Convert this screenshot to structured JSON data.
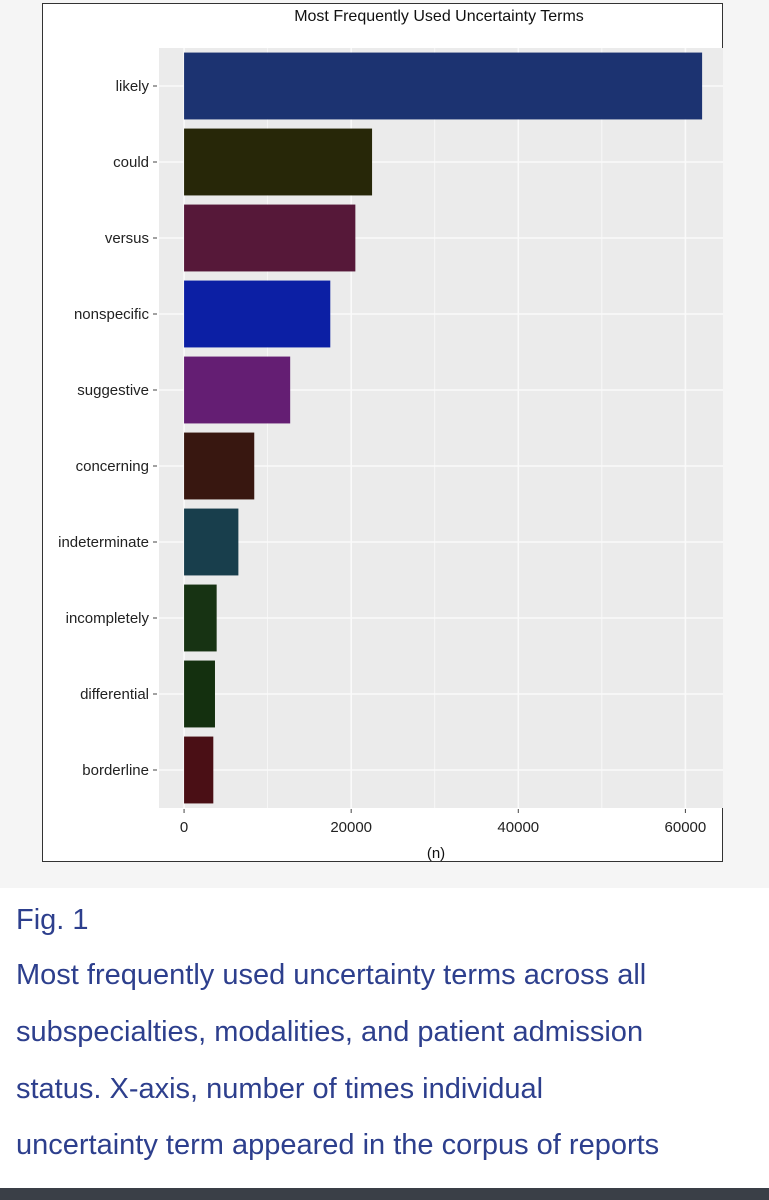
{
  "figure_label": "Fig. 1",
  "caption_lines": [
    "Most frequently used uncertainty terms across all",
    "subspecialties, modalities, and patient admission",
    "status. X-axis, number of times individual",
    "uncertainty term appeared in the corpus of reports"
  ],
  "chart_data": {
    "type": "bar",
    "orientation": "horizontal",
    "title": "Most Frequently Used Uncertainty Terms",
    "xlabel": "(n)",
    "ylabel": "",
    "categories": [
      "likely",
      "could",
      "versus",
      "nonspecific",
      "suggestive",
      "concerning",
      "indeterminate",
      "incompletely",
      "differential",
      "borderline"
    ],
    "values": [
      62000,
      22500,
      20500,
      17500,
      12700,
      8400,
      6500,
      3900,
      3700,
      3500
    ],
    "bar_colors": [
      "#1c3371",
      "#272708",
      "#561839",
      "#0c1fa4",
      "#641e73",
      "#381710",
      "#183e4c",
      "#173313",
      "#14300f",
      "#4a0f15"
    ],
    "xlim": [
      -3000,
      64500
    ],
    "xticks": [
      0,
      20000,
      40000,
      60000
    ],
    "xtick_labels": [
      "0",
      "20000",
      "40000",
      "60000"
    ],
    "grid": true,
    "panel_background": "#ebebeb",
    "grid_color": "#fafafa"
  }
}
